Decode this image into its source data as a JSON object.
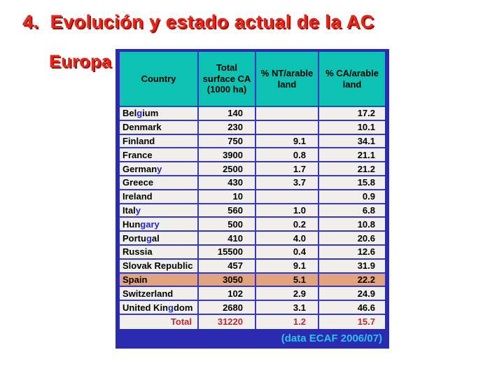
{
  "slide": {
    "title_number": "4.",
    "title": "Evolución y estado actual de la AC",
    "subtitle": "Europa"
  },
  "table": {
    "headers": [
      "Country",
      "Total\nsurface CA\n(1000 ha)",
      "% NT/arable\nland",
      "% CA/arable\nland"
    ],
    "rows": [
      {
        "country": [
          [
            "Bel",
            "k"
          ],
          [
            "g",
            "b"
          ],
          [
            "ium",
            "k"
          ]
        ],
        "total": "140",
        "nt": "",
        "ca": "17.2",
        "highlight": false
      },
      {
        "country": [
          [
            "Denmark",
            "k"
          ]
        ],
        "total": "230",
        "nt": "",
        "ca": "10.1",
        "highlight": false
      },
      {
        "country": [
          [
            "Finland",
            "k"
          ]
        ],
        "total": "750",
        "nt": "9.1",
        "ca": "34.1",
        "highlight": false
      },
      {
        "country": [
          [
            "France",
            "k"
          ]
        ],
        "total": "3900",
        "nt": "0.8",
        "ca": "21.1",
        "highlight": false
      },
      {
        "country": [
          [
            "German",
            "k"
          ],
          [
            "y",
            "b"
          ]
        ],
        "total": "2500",
        "nt": "1.7",
        "ca": "21.2",
        "highlight": false
      },
      {
        "country": [
          [
            "Greece",
            "k"
          ]
        ],
        "total": "430",
        "nt": "3.7",
        "ca": "15.8",
        "highlight": false
      },
      {
        "country": [
          [
            "Ireland",
            "k"
          ]
        ],
        "total": "10",
        "nt": "",
        "ca": "0.9",
        "highlight": false
      },
      {
        "country": [
          [
            "Ital",
            "k"
          ],
          [
            "y",
            "b"
          ]
        ],
        "total": "560",
        "nt": "1.0",
        "ca": "6.8",
        "highlight": false
      },
      {
        "country": [
          [
            "Hun",
            "k"
          ],
          [
            "gary",
            "b"
          ]
        ],
        "total": "500",
        "nt": "0.2",
        "ca": "10.8",
        "highlight": false
      },
      {
        "country": [
          [
            "Portu",
            "k"
          ],
          [
            "g",
            "b"
          ],
          [
            "al",
            "k"
          ]
        ],
        "total": "410",
        "nt": "4.0",
        "ca": "20.6",
        "highlight": false
      },
      {
        "country": [
          [
            "Russia",
            "k"
          ]
        ],
        "total": "15500",
        "nt": "0.4",
        "ca": "12.6",
        "highlight": false
      },
      {
        "country": [
          [
            "Slovak Republic",
            "k"
          ]
        ],
        "total": "457",
        "nt": "9.1",
        "ca": "31.9",
        "highlight": false
      },
      {
        "country": [
          [
            "Spain",
            "k"
          ]
        ],
        "total": "3050",
        "nt": "5.1",
        "ca": "22.2",
        "highlight": true
      },
      {
        "country": [
          [
            "Switzerland",
            "k"
          ]
        ],
        "total": "102",
        "nt": "2.9",
        "ca": "24.9",
        "highlight": false
      },
      {
        "country": [
          [
            "United Kin",
            "k"
          ],
          [
            "g",
            "b"
          ],
          [
            "dom",
            "k"
          ]
        ],
        "total": "2680",
        "nt": "3.1",
        "ca": "46.6",
        "highlight": false
      }
    ],
    "total_row": {
      "label": "Total",
      "total": "31220",
      "nt": "1.2",
      "ca": "15.7"
    },
    "footer": "(data ECAF 2006/07)"
  },
  "colors": {
    "accent_red": "#ee2418",
    "shadow_red": "#8e1a14",
    "header_teal": "#0cc3b3",
    "frame_blue": "#2b2bb2",
    "grid_blue": "#3636c6",
    "row_bg": "#f0efec",
    "highlight_salmon": "#e2a47d",
    "letter_blue": "#2424cc",
    "total_red": "#c42535",
    "footer_cyan": "#2bc3e8"
  },
  "chart_data": {
    "type": "table",
    "title": "Evolución y estado actual de la AC - Europa",
    "columns": [
      "Country",
      "Total surface CA (1000 ha)",
      "% NT/arable land",
      "% CA/arable land"
    ],
    "rows": [
      [
        "Belgium",
        140,
        null,
        17.2
      ],
      [
        "Denmark",
        230,
        null,
        10.1
      ],
      [
        "Finland",
        750,
        9.1,
        34.1
      ],
      [
        "France",
        3900,
        0.8,
        21.1
      ],
      [
        "Germany",
        2500,
        1.7,
        21.2
      ],
      [
        "Greece",
        430,
        3.7,
        15.8
      ],
      [
        "Ireland",
        10,
        null,
        0.9
      ],
      [
        "Italy",
        560,
        1.0,
        6.8
      ],
      [
        "Hungary",
        500,
        0.2,
        10.8
      ],
      [
        "Portugal",
        410,
        4.0,
        20.6
      ],
      [
        "Russia",
        15500,
        0.4,
        12.6
      ],
      [
        "Slovak Republic",
        457,
        9.1,
        31.9
      ],
      [
        "Spain",
        3050,
        5.1,
        22.2
      ],
      [
        "Switzerland",
        102,
        2.9,
        24.9
      ],
      [
        "United Kingdom",
        2680,
        3.1,
        46.6
      ],
      [
        "Total",
        31220,
        1.2,
        15.7
      ]
    ],
    "source": "(data ECAF 2006/07)",
    "highlighted_row": "Spain"
  }
}
